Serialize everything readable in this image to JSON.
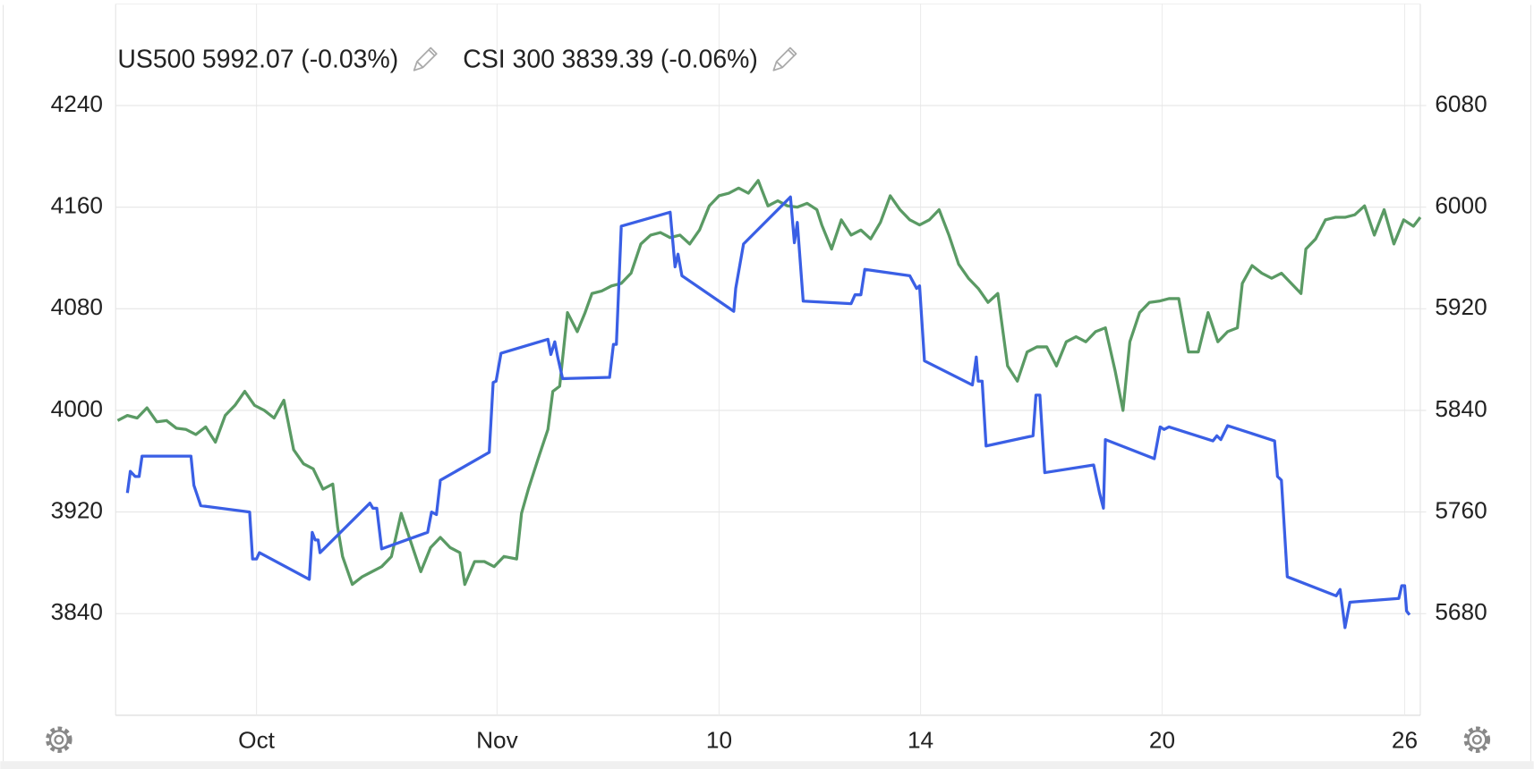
{
  "chart_data": {
    "type": "line",
    "legend": "top-left",
    "grid": true,
    "xlim": [
      0,
      1334
    ],
    "xticks": [
      {
        "value": 144,
        "label": "Oct"
      },
      {
        "value": 390,
        "label": "Nov"
      },
      {
        "value": 617,
        "label": "10"
      },
      {
        "value": 823,
        "label": "14"
      },
      {
        "value": 1070,
        "label": "20"
      },
      {
        "value": 1318,
        "label": "26"
      }
    ],
    "ylim": [
      3760,
      4320
    ],
    "yticks": [
      3840,
      3920,
      4000,
      4080,
      4160,
      4240
    ],
    "y2lim": [
      5600,
      6160
    ],
    "y2ticks": [
      5680,
      5760,
      5840,
      5920,
      6000,
      6080
    ],
    "series": [
      {
        "name": "US500",
        "last": 5992.07,
        "change_label": "(-0.03%)",
        "color": "#5a9a64",
        "axis": "y2",
        "x": [
          2,
          12,
          22,
          32,
          42,
          52,
          62,
          72,
          82,
          92,
          102,
          112,
          122,
          132,
          142,
          152,
          162,
          172,
          182,
          192,
          202,
          212,
          222,
          227,
          232,
          242,
          252,
          262,
          272,
          282,
          292,
          302,
          312,
          322,
          332,
          342,
          352,
          357,
          367,
          377,
          387,
          397,
          410,
          415,
          422,
          432,
          442,
          447,
          454,
          462,
          472,
          480,
          487,
          497,
          507,
          517,
          527,
          537,
          547,
          557,
          567,
          577,
          587,
          597,
          607,
          617,
          627,
          637,
          647,
          657,
          667,
          677,
          687,
          697,
          707,
          717,
          722,
          732,
          742,
          752,
          762,
          772,
          782,
          792,
          802,
          812,
          822,
          832,
          842,
          852,
          862,
          872,
          882,
          892,
          902,
          912,
          922,
          932,
          942,
          952,
          962,
          972,
          982,
          992,
          1002,
          1012,
          1022,
          1030,
          1037,
          1047,
          1057,
          1067,
          1077,
          1087,
          1097,
          1107,
          1117,
          1127,
          1137,
          1147,
          1152,
          1162,
          1172,
          1182,
          1192,
          1202,
          1212,
          1217,
          1227,
          1237,
          1247,
          1257,
          1267,
          1277,
          1287,
          1297,
          1307,
          1317,
          1327,
          1334
        ],
        "values": [
          5832,
          5836,
          5834,
          5842,
          5831,
          5832,
          5826,
          5825,
          5821,
          5827,
          5815,
          5836,
          5844,
          5855,
          5844,
          5840,
          5834,
          5848,
          5809,
          5798,
          5794,
          5778,
          5782,
          5748,
          5725,
          5703,
          5709,
          5713,
          5717,
          5725,
          5759,
          5736,
          5713,
          5732,
          5740,
          5732,
          5728,
          5703,
          5721,
          5721,
          5717,
          5725,
          5723,
          5759,
          5778,
          5802,
          5825,
          5855,
          5859,
          5917,
          5902,
          5917,
          5932,
          5934,
          5938,
          5940,
          5948,
          5971,
          5978,
          5980,
          5976,
          5978,
          5971,
          5982,
          6001,
          6009,
          6011,
          6015,
          6011,
          6021,
          6001,
          6005,
          6001,
          6000,
          6003,
          5998,
          5986,
          5967,
          5990,
          5978,
          5982,
          5975,
          5988,
          6009,
          5998,
          5990,
          5986,
          5990,
          5998,
          5978,
          5955,
          5944,
          5936,
          5925,
          5932,
          5875,
          5863,
          5886,
          5890,
          5890,
          5875,
          5894,
          5898,
          5894,
          5902,
          5905,
          5871,
          5840,
          5894,
          5917,
          5925,
          5926,
          5928,
          5928,
          5886,
          5886,
          5917,
          5894,
          5902,
          5905,
          5940,
          5954,
          5948,
          5944,
          5948,
          5940,
          5932,
          5967,
          5975,
          5990,
          5992,
          5992,
          5994,
          6001,
          5978,
          5998,
          5971,
          5990,
          5985,
          5992
        ]
      },
      {
        "name": "CSI 300",
        "last": 3839.39,
        "change_label": "(-0.06%)",
        "color": "#3a5fe5",
        "axis": "y",
        "x": [
          12,
          15,
          20,
          24,
          27,
          77,
          80,
          87,
          137,
          140,
          144,
          147,
          198,
          201,
          204,
          207,
          209,
          260,
          263,
          267,
          272,
          319,
          323,
          328,
          332,
          382,
          386,
          389,
          394,
          442,
          445,
          449,
          452,
          457,
          505,
          509,
          512,
          517,
          567,
          572,
          575,
          579,
          632,
          634,
          642,
          690,
          694,
          697,
          703,
          752,
          756,
          762,
          766,
          812,
          819,
          822,
          827,
          876,
          880,
          882,
          886,
          890,
          938,
          941,
          945,
          950,
          1000,
          1006,
          1010,
          1012,
          1062,
          1068,
          1072,
          1077,
          1122,
          1126,
          1130,
          1137,
          1185,
          1188,
          1192,
          1198,
          1248,
          1252,
          1257,
          1262,
          1312,
          1315,
          1318,
          1320,
          1323
        ],
        "values": [
          3935,
          3952,
          3948,
          3948,
          3964,
          3964,
          3941,
          3925,
          3920,
          3883,
          3883,
          3888,
          3867,
          3904,
          3898,
          3898,
          3888,
          3927,
          3923,
          3923,
          3891,
          3904,
          3920,
          3918,
          3945,
          3967,
          4022,
          4023,
          4045,
          4056,
          4044,
          4054,
          4042,
          4025,
          4026,
          4052,
          4052,
          4145,
          4156,
          4113,
          4123,
          4106,
          4078,
          4096,
          4131,
          4168,
          4132,
          4148,
          4086,
          4084,
          4091,
          4091,
          4111,
          4106,
          4096,
          4098,
          4039,
          4020,
          4042,
          4023,
          4023,
          3972,
          3980,
          4012,
          4012,
          3951,
          3957,
          3935,
          3923,
          3977,
          3962,
          3987,
          3985,
          3987,
          3976,
          3980,
          3977,
          3988,
          3976,
          3948,
          3945,
          3869,
          3854,
          3859,
          3829,
          3849,
          3852,
          3862,
          3862,
          3842,
          3839
        ]
      }
    ]
  }
}
